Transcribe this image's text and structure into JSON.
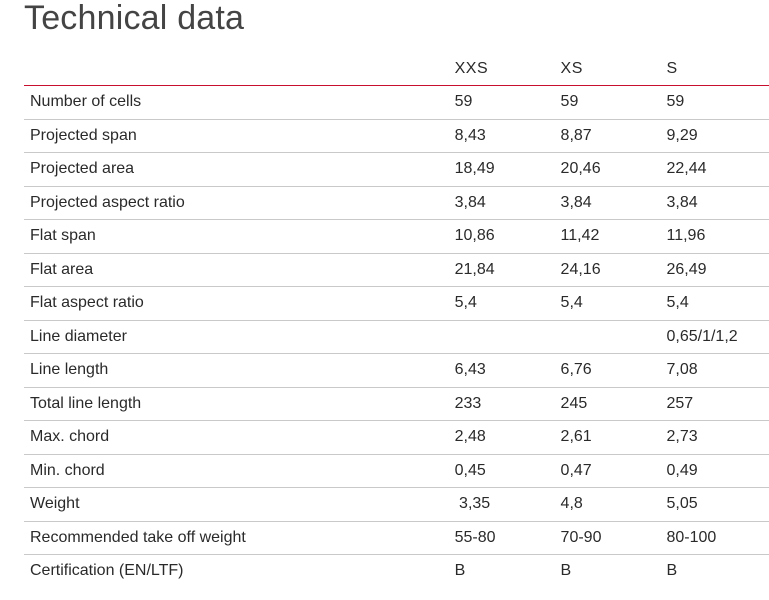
{
  "page": {
    "title": "Technical data"
  },
  "table": {
    "columns": [
      "",
      "XXS",
      "XS",
      "S"
    ],
    "rows": [
      [
        "Number of cells",
        "59",
        "59",
        "59"
      ],
      [
        "Projected span",
        "8,43",
        "8,87",
        "9,29"
      ],
      [
        "Projected area",
        "18,49",
        "20,46",
        "22,44"
      ],
      [
        "Projected aspect ratio",
        "3,84",
        "3,84",
        "3,84"
      ],
      [
        "Flat span",
        "10,86",
        "11,42",
        "11,96"
      ],
      [
        "Flat area",
        "21,84",
        "24,16",
        "26,49"
      ],
      [
        "Flat aspect ratio",
        "5,4",
        "5,4",
        "5,4"
      ],
      [
        "Line diameter",
        "",
        "",
        "0,65/1/1,2"
      ],
      [
        "Line length",
        "6,43",
        "6,76",
        "7,08"
      ],
      [
        "Total line length",
        "233",
        "245",
        "257"
      ],
      [
        "Max. chord",
        "2,48",
        "2,61",
        "2,73"
      ],
      [
        "Min. chord",
        "0,45",
        "0,47",
        "0,49"
      ],
      [
        "Weight",
        " 3,35",
        "4,8",
        "5,05"
      ],
      [
        "Recommended take off weight",
        "55-80",
        "70-90",
        "80-100"
      ],
      [
        "Certification (EN/LTF)",
        "B",
        "B",
        "B"
      ]
    ]
  },
  "colors": {
    "header_rule": "#c8102e",
    "row_rule": "#c9c9c9",
    "text": "#2a2a2a"
  }
}
